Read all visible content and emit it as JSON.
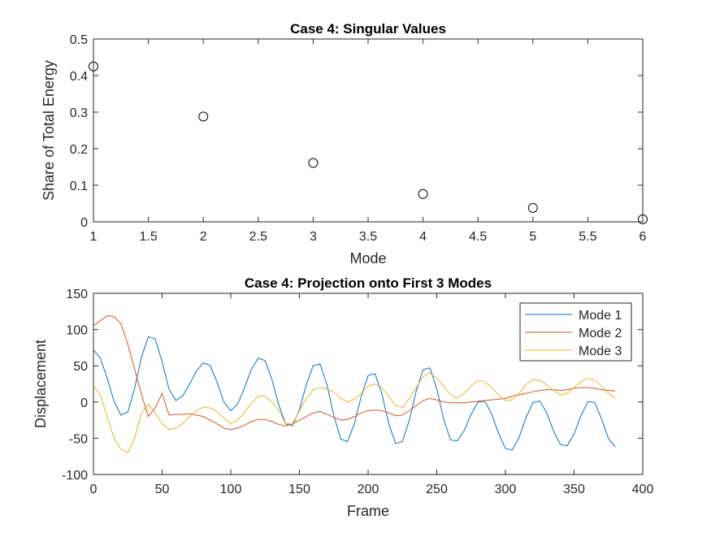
{
  "chart_data": [
    {
      "type": "scatter",
      "title": "Case 4: Singular Values",
      "x_label": "Mode",
      "y_label": "Share of Total Energy",
      "x": [
        1,
        2,
        3,
        4,
        5,
        6
      ],
      "values": [
        0.425,
        0.288,
        0.161,
        0.076,
        0.038,
        0.007
      ],
      "color": "#000000",
      "xlim": [
        1,
        6
      ],
      "xticks": [
        1,
        1.5,
        2,
        2.5,
        3,
        3.5,
        4,
        4.5,
        5,
        5.5,
        6
      ],
      "ylim": [
        0,
        0.5
      ],
      "yticks": [
        0,
        0.1,
        0.2,
        0.3,
        0.4,
        0.5
      ]
    },
    {
      "type": "line",
      "title": "Case 4: Projection onto First 3 Modes",
      "x_label": "Frame",
      "y_label": "Displacement",
      "x": [
        0,
        5,
        10,
        15,
        20,
        25,
        30,
        35,
        40,
        45,
        50,
        55,
        60,
        65,
        70,
        75,
        80,
        85,
        90,
        95,
        100,
        105,
        110,
        115,
        120,
        125,
        130,
        135,
        140,
        145,
        150,
        155,
        160,
        165,
        170,
        175,
        180,
        185,
        190,
        195,
        200,
        205,
        210,
        215,
        220,
        225,
        230,
        235,
        240,
        245,
        250,
        255,
        260,
        265,
        270,
        275,
        280,
        285,
        290,
        295,
        300,
        305,
        310,
        315,
        320,
        325,
        330,
        335,
        340,
        345,
        350,
        355,
        360,
        365,
        370,
        375,
        380
      ],
      "series": [
        {
          "name": "Mode 1",
          "color": "#0072BD",
          "values": [
            72,
            60.8,
            32.5,
            1.2,
            -18.1,
            -13.8,
            19.0,
            62.2,
            90.2,
            86.9,
            55.4,
            18.2,
            2,
            8.5,
            24.7,
            42.8,
            53.9,
            50.5,
            27.3,
            0,
            -12,
            -3.0,
            19.7,
            45.0,
            60.5,
            57.2,
            31.2,
            -4.2,
            -30.2,
            -32.8,
            -10.4,
            23.9,
            50.1,
            52.3,
            24.4,
            -18.3,
            -50.9,
            -54.6,
            -30.0,
            7.8,
            36.6,
            39.2,
            11.5,
            -29.5,
            -57.2,
            -54.6,
            -25.1,
            15.1,
            44.6,
            47.2,
            18.6,
            -23.6,
            -52.2,
            -53.6,
            -39.2,
            -17.0,
            -0.2,
            1.3,
            -16.4,
            -43.5,
            -64.1,
            -66.3,
            -48.6,
            -21.5,
            -0.9,
            1.4,
            -14.7,
            -39.5,
            -58.5,
            -60.4,
            -44.0,
            -18.8,
            0.4,
            -0.4,
            -23.3,
            -50.2,
            -62
          ]
        },
        {
          "name": "Mode 2",
          "color": "#D95319",
          "values": [
            105,
            112,
            119,
            118,
            108,
            80,
            45,
            10,
            -20,
            -8,
            12,
            -18,
            -17,
            -17,
            -16,
            -18,
            -20,
            -25,
            -30,
            -36,
            -38,
            -36,
            -32,
            -27,
            -24,
            -24,
            -27,
            -31,
            -33,
            -30,
            -25,
            -20,
            -15,
            -13,
            -17,
            -21,
            -25,
            -24,
            -20,
            -15,
            -12,
            -11,
            -12,
            -15,
            -19,
            -18,
            -12,
            -5,
            2,
            5,
            3,
            0,
            -1,
            -1,
            -1,
            0,
            1,
            2,
            3,
            4,
            5,
            8,
            10,
            12,
            14,
            16,
            17,
            17,
            16,
            17,
            19,
            20,
            20,
            19,
            17,
            16,
            15
          ]
        },
        {
          "name": "Mode 3",
          "color": "#EDB120",
          "values": [
            22,
            10,
            -20,
            -50,
            -65,
            -70,
            -50,
            -15,
            -3,
            -15,
            -30,
            -38,
            -36,
            -30,
            -20,
            -12,
            -7,
            -8,
            -13,
            -22,
            -30,
            -25,
            -14,
            -2,
            8,
            8,
            0,
            -12,
            -30,
            -30,
            -12,
            5,
            17,
            20,
            18,
            14,
            5,
            0,
            4,
            12,
            22,
            25,
            20,
            8,
            -5,
            -8,
            5,
            20,
            35,
            40,
            33,
            22,
            10,
            5,
            12,
            22,
            30,
            28,
            20,
            10,
            2,
            3,
            12,
            24,
            31,
            30,
            24,
            16,
            10,
            12,
            20,
            28,
            33,
            30,
            22,
            12,
            5
          ]
        }
      ],
      "xlim": [
        0,
        400
      ],
      "xticks": [
        0,
        50,
        100,
        150,
        200,
        250,
        300,
        350,
        400
      ],
      "ylim": [
        -100,
        150
      ],
      "yticks": [
        -100,
        -50,
        0,
        50,
        100,
        150
      ],
      "legend": "northeast"
    }
  ]
}
